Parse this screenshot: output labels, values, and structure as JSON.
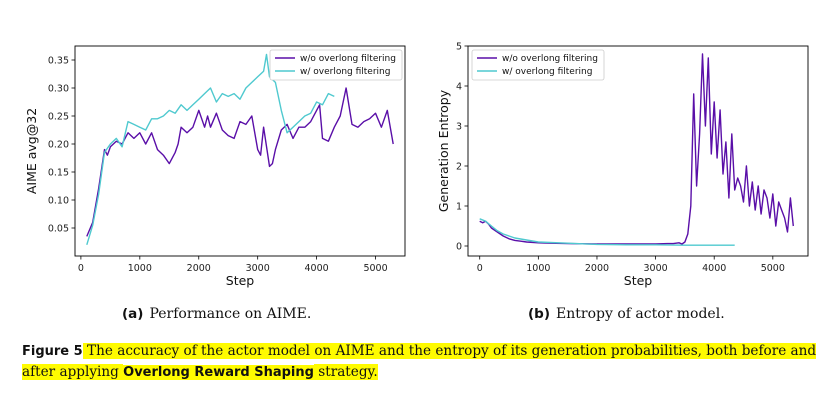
{
  "subcaptions": {
    "a_label": "(a)",
    "a_text": "Performance on AIME.",
    "b_label": "(b)",
    "b_text": "Entropy of actor model."
  },
  "caption": {
    "label": "Figure 5",
    "part1": "The accuracy of the actor model on AIME and the entropy of its generation probabilities, both before and after applying",
    "bold": "Overlong Reward Shaping",
    "part2": "strategy."
  },
  "chart_data": [
    {
      "type": "line",
      "xlabel": "Step",
      "ylabel": "AIME avg@32",
      "xlim": [
        -100,
        5500
      ],
      "ylim": [
        0.0,
        0.375
      ],
      "xticks": [
        0,
        1000,
        2000,
        3000,
        4000,
        5000
      ],
      "yticks": [
        0.05,
        0.1,
        0.15,
        0.2,
        0.25,
        0.3,
        0.35
      ],
      "ytick_labels": [
        "0.05",
        "0.10",
        "0.15",
        "0.20",
        "0.25",
        "0.30",
        "0.35"
      ],
      "legend": "top-right",
      "series": [
        {
          "name": "w/o overlong filtering",
          "color": "#5a0fa8",
          "x": [
            100,
            200,
            300,
            400,
            450,
            500,
            600,
            700,
            800,
            900,
            1000,
            1100,
            1200,
            1300,
            1400,
            1500,
            1600,
            1650,
            1700,
            1800,
            1900,
            2000,
            2100,
            2150,
            2200,
            2300,
            2400,
            2500,
            2600,
            2700,
            2800,
            2900,
            3000,
            3050,
            3100,
            3200,
            3250,
            3300,
            3400,
            3500,
            3600,
            3700,
            3800,
            3900,
            4000,
            4050,
            4100,
            4200,
            4300,
            4400,
            4500,
            4600,
            4700,
            4800,
            4900,
            5000,
            5100,
            5200,
            5300
          ],
          "y": [
            0.035,
            0.06,
            0.12,
            0.19,
            0.18,
            0.195,
            0.205,
            0.2,
            0.22,
            0.21,
            0.22,
            0.2,
            0.22,
            0.19,
            0.18,
            0.165,
            0.185,
            0.2,
            0.23,
            0.22,
            0.23,
            0.26,
            0.23,
            0.25,
            0.23,
            0.255,
            0.225,
            0.215,
            0.21,
            0.24,
            0.235,
            0.25,
            0.19,
            0.18,
            0.23,
            0.16,
            0.165,
            0.19,
            0.225,
            0.235,
            0.21,
            0.23,
            0.23,
            0.24,
            0.26,
            0.27,
            0.21,
            0.205,
            0.23,
            0.25,
            0.3,
            0.235,
            0.23,
            0.24,
            0.245,
            0.255,
            0.23,
            0.26,
            0.2
          ]
        },
        {
          "name": "w/ overlong filtering",
          "color": "#4fc9cf",
          "x": [
            100,
            200,
            300,
            400,
            500,
            600,
            700,
            800,
            900,
            1000,
            1100,
            1200,
            1300,
            1400,
            1500,
            1600,
            1700,
            1800,
            1900,
            2000,
            2100,
            2200,
            2300,
            2400,
            2500,
            2600,
            2700,
            2800,
            2900,
            3000,
            3100,
            3150,
            3200,
            3300,
            3400,
            3500,
            3600,
            3700,
            3800,
            3900,
            4000,
            4100,
            4200,
            4300
          ],
          "y": [
            0.02,
            0.055,
            0.11,
            0.185,
            0.2,
            0.21,
            0.195,
            0.24,
            0.235,
            0.23,
            0.225,
            0.245,
            0.245,
            0.25,
            0.26,
            0.255,
            0.27,
            0.26,
            0.27,
            0.28,
            0.29,
            0.3,
            0.275,
            0.29,
            0.285,
            0.29,
            0.28,
            0.3,
            0.31,
            0.32,
            0.33,
            0.36,
            0.32,
            0.31,
            0.26,
            0.22,
            0.23,
            0.24,
            0.25,
            0.255,
            0.275,
            0.27,
            0.29,
            0.285
          ]
        }
      ]
    },
    {
      "type": "line",
      "xlabel": "Step",
      "ylabel": "Generation Entropy",
      "xlim": [
        -200,
        5600
      ],
      "ylim": [
        -0.25,
        5.0
      ],
      "xticks": [
        0,
        1000,
        2000,
        3000,
        4000,
        5000
      ],
      "yticks": [
        0,
        1,
        2,
        3,
        4,
        5
      ],
      "legend": "top-left",
      "series": [
        {
          "name": "w/o overlong filtering",
          "color": "#5a0fa8",
          "x": [
            0,
            50,
            100,
            150,
            200,
            300,
            400,
            500,
            600,
            700,
            800,
            1000,
            1200,
            1500,
            2000,
            2500,
            3000,
            3200,
            3300,
            3400,
            3450,
            3500,
            3550,
            3600,
            3650,
            3700,
            3750,
            3800,
            3850,
            3900,
            3950,
            4000,
            4050,
            4100,
            4150,
            4200,
            4250,
            4300,
            4350,
            4400,
            4450,
            4500,
            4550,
            4600,
            4650,
            4700,
            4750,
            4800,
            4850,
            4900,
            4950,
            5000,
            5050,
            5100,
            5150,
            5200,
            5250,
            5300,
            5350
          ],
          "y": [
            0.62,
            0.58,
            0.62,
            0.55,
            0.45,
            0.35,
            0.25,
            0.18,
            0.14,
            0.12,
            0.1,
            0.08,
            0.07,
            0.06,
            0.05,
            0.05,
            0.05,
            0.06,
            0.06,
            0.08,
            0.05,
            0.1,
            0.3,
            1.0,
            3.8,
            1.5,
            2.8,
            4.8,
            3.0,
            4.7,
            2.3,
            3.6,
            2.2,
            3.4,
            1.8,
            2.6,
            1.2,
            2.8,
            1.4,
            1.7,
            1.5,
            1.1,
            2.0,
            1.0,
            1.6,
            0.9,
            1.5,
            0.8,
            1.4,
            1.2,
            0.7,
            1.3,
            0.5,
            1.1,
            0.9,
            0.7,
            0.35,
            1.2,
            0.5
          ]
        },
        {
          "name": "w/ overlong filtering",
          "color": "#4fc9cf",
          "x": [
            0,
            100,
            200,
            300,
            400,
            500,
            600,
            800,
            1000,
            1500,
            2000,
            2500,
            3000,
            3500,
            4000,
            4350
          ],
          "y": [
            0.68,
            0.62,
            0.5,
            0.38,
            0.3,
            0.25,
            0.2,
            0.15,
            0.1,
            0.07,
            0.04,
            0.03,
            0.03,
            0.02,
            0.02,
            0.02
          ]
        }
      ]
    }
  ]
}
